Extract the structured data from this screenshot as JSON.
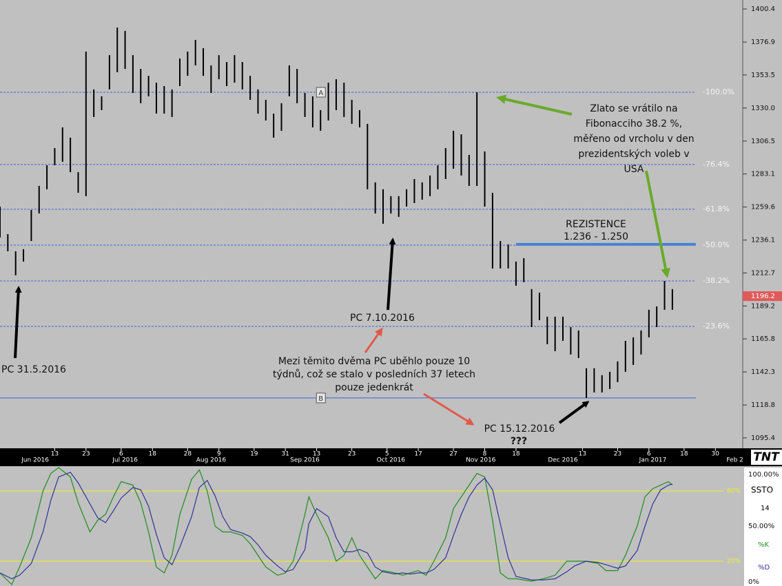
{
  "chart_data": [
    {
      "type": "hilo",
      "color": "#000000",
      "xlim": [
        0,
        190
      ],
      "ylim": [
        1088.5,
        1406.8
      ],
      "yticks": [
        1400.4,
        1376.9,
        1353.5,
        {
          "value": 1330,
          "label": "1330.0"
        },
        1306.5,
        1283.1,
        1259.6,
        1236.1,
        1212.7,
        1189.2,
        1165.8,
        1142.3,
        1118.8,
        1095.4
      ],
      "xticks": [
        {
          "value": 14,
          "label": "13"
        },
        {
          "value": 22,
          "label": "23"
        },
        {
          "value": 31,
          "label": "6"
        },
        {
          "value": 39,
          "label": "18"
        },
        {
          "value": 48,
          "label": "28"
        },
        {
          "value": 56,
          "label": "9"
        },
        {
          "value": 65,
          "label": "19"
        },
        {
          "value": 73,
          "label": "31"
        },
        {
          "value": 81,
          "label": "13"
        },
        {
          "value": 90,
          "label": "23"
        },
        {
          "value": 99,
          "label": "5"
        },
        {
          "value": 107,
          "label": "17"
        },
        {
          "value": 116,
          "label": "27"
        },
        {
          "value": 124,
          "label": "8"
        },
        {
          "value": 132,
          "label": "18"
        },
        {
          "value": 149,
          "label": "13"
        },
        {
          "value": 158,
          "label": "23"
        },
        {
          "value": 166,
          "label": "6"
        },
        {
          "value": 175,
          "label": "18"
        },
        {
          "value": 183,
          "label": "30"
        }
      ],
      "month_ticks": [
        {
          "value": 9,
          "label": "Jun 2016"
        },
        {
          "value": 32,
          "label": "Jul 2016"
        },
        {
          "value": 54,
          "label": "Aug 2016"
        },
        {
          "value": 78,
          "label": "Sep 2016"
        },
        {
          "value": 100,
          "label": "Oct 2016"
        },
        {
          "value": 123,
          "label": "Nov 2016"
        },
        {
          "value": 144,
          "label": "Dec 2016"
        },
        {
          "value": 167,
          "label": "Jan 2017"
        },
        {
          "value": 188,
          "label": "Feb 2"
        }
      ],
      "x": [
        0,
        2,
        4,
        6,
        8,
        10,
        12,
        14,
        16,
        18,
        20,
        22,
        24,
        26,
        28,
        30,
        32,
        34,
        36,
        38,
        40,
        42,
        44,
        46,
        48,
        50,
        52,
        54,
        56,
        58,
        60,
        62,
        64,
        66,
        68,
        70,
        72,
        74,
        76,
        78,
        80,
        82,
        84,
        86,
        88,
        90,
        92,
        94,
        96,
        98,
        100,
        102,
        104,
        106,
        108,
        110,
        112,
        114,
        116,
        118,
        120,
        122,
        124,
        126,
        128,
        130,
        132,
        134,
        136,
        138,
        140,
        142,
        144,
        146,
        148,
        150,
        152,
        154,
        156,
        158,
        160,
        162,
        164,
        166,
        168,
        170,
        172
      ],
      "high": [
        1259.9,
        1240.3,
        1228.1,
        1229.6,
        1257.5,
        1274.6,
        1289.3,
        1301.5,
        1316.2,
        1308.9,
        1284.4,
        1370.1,
        1343.2,
        1338.3,
        1367.6,
        1387.2,
        1384.8,
        1367.6,
        1357.8,
        1352.9,
        1348.0,
        1345.6,
        1343.2,
        1365.2,
        1370.1,
        1378.4,
        1372.5,
        1360.3,
        1367.6,
        1362.7,
        1367.6,
        1362.7,
        1352.9,
        1343.2,
        1335.8,
        1326.0,
        1333.4,
        1360.3,
        1357.8,
        1340.7,
        1338.3,
        1328.5,
        1348.0,
        1350.5,
        1348.0,
        1335.8,
        1328.5,
        1318.7,
        1277.1,
        1272.2,
        1267.3,
        1267.3,
        1272.2,
        1279.5,
        1277.1,
        1282.0,
        1289.3,
        1301.5,
        1313.8,
        1311.3,
        1296.6,
        1341.2,
        1299.1,
        1269.7,
        1235.4,
        1233.0,
        1220.8,
        1223.2,
        1201.2,
        1198.7,
        1181.6,
        1181.6,
        1181.6,
        1174.2,
        1171.8,
        1144.9,
        1144.9,
        1140.0,
        1142.4,
        1149.8,
        1164.4,
        1166.9,
        1171.8,
        1186.5,
        1188.9,
        1207.0,
        1201.2
      ],
      "low": [
        1237.9,
        1228.1,
        1211.0,
        1220.8,
        1235.4,
        1255.0,
        1272.2,
        1289.3,
        1291.7,
        1284.4,
        1269.7,
        1267.3,
        1323.6,
        1328.5,
        1343.2,
        1355.4,
        1357.8,
        1340.7,
        1333.4,
        1338.3,
        1326.0,
        1326.0,
        1323.6,
        1345.6,
        1352.9,
        1360.3,
        1352.9,
        1340.7,
        1350.5,
        1345.6,
        1348.0,
        1343.2,
        1335.8,
        1326.0,
        1321.1,
        1308.9,
        1313.8,
        1338.3,
        1333.4,
        1323.6,
        1316.2,
        1313.8,
        1321.1,
        1328.5,
        1323.6,
        1318.7,
        1316.2,
        1272.2,
        1255.0,
        1247.7,
        1255.0,
        1252.6,
        1259.9,
        1262.4,
        1264.8,
        1267.3,
        1272.2,
        1279.5,
        1286.8,
        1282.0,
        1274.6,
        1274.6,
        1259.9,
        1215.9,
        1215.9,
        1215.9,
        1203.6,
        1206.1,
        1174.2,
        1179.1,
        1162.0,
        1157.1,
        1164.4,
        1154.7,
        1152.2,
        1123.8,
        1127.7,
        1127.7,
        1130.2,
        1135.1,
        1142.4,
        1147.3,
        1154.7,
        1166.9,
        1174.2,
        1186.5,
        1186.5
      ],
      "current_price": {
        "value": 1196.2,
        "color": "#e05a5a"
      },
      "fib_color": "#3a5fd9",
      "fib_levels": [
        {
          "value": 1341.2,
          "label": "-100.0%"
        },
        {
          "value": 1289.8,
          "label": "-76.4%"
        },
        {
          "value": 1258.0,
          "label": "-61.8%"
        },
        {
          "value": 1232.5,
          "label": "-50.0%"
        },
        {
          "value": 1207.0,
          "label": "-38.2%"
        },
        {
          "value": 1174.7,
          "label": "-23.6%"
        }
      ],
      "base_line": 1123.8,
      "markers": [
        {
          "label": "A",
          "x": 82,
          "y": 1341.2
        },
        {
          "label": "B",
          "x": 82,
          "y": 1123.8
        }
      ],
      "resistance": {
        "value": 1233.0,
        "x": [
          132,
          178
        ],
        "color": "#4a7fd6",
        "lines": [
          "REZISTENCE",
          "1.236 - 1.250"
        ]
      },
      "annotations": [
        {
          "lines": [
            "Zlato se vrátilo na",
            "Fibonacciho 38.2 %,",
            "měřeno od vrcholu v den",
            "prezidentských voleb v",
            "USA"
          ]
        },
        {
          "lines": [
            "PC 31.5.2016"
          ]
        },
        {
          "lines": [
            "PC 7.10.2016"
          ]
        },
        {
          "lines": [
            "Mezi těmito dvěma PC uběhlo pouze 10",
            "týdnů, což se stalo v posledních 37 letech",
            "pouze jedenkrát"
          ]
        },
        {
          "lines": [
            "PC 15.12.2016",
            "???"
          ]
        }
      ],
      "logo": "TNT"
    },
    {
      "type": "line",
      "title": "SSTO",
      "period": 14,
      "xlim": [
        0,
        190
      ],
      "ylim": [
        0,
        100
      ],
      "yticks": [
        {
          "value": 100,
          "label": "100.00%"
        },
        {
          "value": 50,
          "label": "50.00%"
        },
        {
          "value": 0,
          "label": "0%"
        }
      ],
      "levels": [
        {
          "value": 80,
          "label": "80%"
        },
        {
          "value": 20,
          "label": "20%"
        }
      ],
      "level_color": "#f0f020",
      "x": [
        0,
        3,
        5,
        8,
        11,
        13,
        15,
        18,
        20,
        23,
        25,
        27,
        29,
        31,
        34,
        36,
        38,
        40,
        42,
        44,
        46,
        49,
        51,
        53,
        55,
        57,
        59,
        62,
        64,
        66,
        68,
        71,
        73,
        75,
        78,
        79,
        81,
        84,
        86,
        88,
        90,
        92,
        94,
        96,
        98,
        101,
        103,
        105,
        107,
        109,
        111,
        114,
        116,
        118,
        120,
        122,
        124,
        126,
        128,
        130,
        132,
        136,
        139,
        142,
        145,
        147,
        150,
        153,
        155,
        158,
        160,
        163,
        165,
        167,
        169,
        171,
        172
      ],
      "series": [
        {
          "name": "%K",
          "color": "#1c8c1c",
          "values": [
            10,
            0,
            15,
            40,
            80,
            95,
            100,
            92,
            70,
            45,
            55,
            60,
            75,
            88,
            85,
            70,
            45,
            15,
            10,
            25,
            60,
            90,
            98,
            80,
            50,
            45,
            45,
            42,
            35,
            25,
            15,
            8,
            10,
            20,
            60,
            75,
            60,
            40,
            20,
            25,
            40,
            25,
            15,
            5,
            12,
            10,
            8,
            10,
            12,
            8,
            20,
            40,
            65,
            75,
            85,
            95,
            92,
            55,
            10,
            5,
            5,
            3,
            5,
            8,
            20,
            20,
            20,
            18,
            12,
            12,
            25,
            50,
            75,
            82,
            85,
            88,
            85
          ]
        },
        {
          "name": "%D",
          "color": "#30309a",
          "values": [
            10,
            5,
            8,
            18,
            45,
            72,
            92,
            96,
            87,
            69,
            57,
            53,
            63,
            74,
            83,
            81,
            67,
            43,
            23,
            17,
            32,
            58,
            83,
            89,
            76,
            58,
            47,
            44,
            41,
            34,
            25,
            16,
            11,
            13,
            30,
            52,
            65,
            58,
            40,
            28,
            28,
            30,
            27,
            15,
            11,
            9,
            10,
            9,
            10,
            10,
            13,
            23,
            42,
            60,
            75,
            85,
            91,
            81,
            52,
            23,
            7,
            4,
            4,
            5,
            11,
            16,
            20,
            19,
            17,
            14,
            16,
            29,
            50,
            69,
            81,
            85,
            86
          ]
        }
      ]
    }
  ]
}
